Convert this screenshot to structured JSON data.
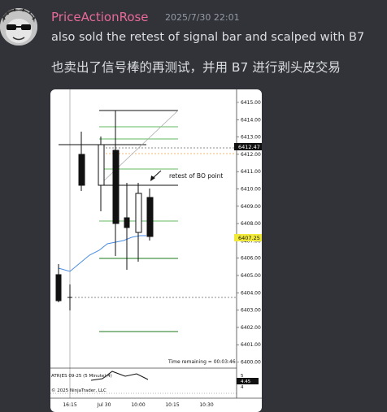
{
  "message": {
    "username": "PriceActionRose",
    "timestamp": "2025/7/30 22:01",
    "text": "also sold the retest of signal bar and scalped with B7",
    "translation": "也卖出了信号棒的再测试，并用 B7 进行剥头皮交易"
  },
  "chart_data": {
    "type": "candlestick",
    "y_ticks": [
      "6415.00",
      "6414.00",
      "6413.00",
      "6412.00",
      "6411.00",
      "6410.00",
      "6409.00",
      "6408.00",
      "6407.00",
      "6406.00",
      "6405.00",
      "6404.00",
      "6403.00",
      "6402.00",
      "6401.00",
      "6400.00"
    ],
    "x_ticks": [
      "16:15",
      "Jul 30",
      "10:00",
      "10:15",
      "10:30"
    ],
    "price_label_1": "6412.47",
    "price_label_2": "6407.25",
    "annotation": "retest of BO point",
    "time_remaining": "Time remaining = 00:03:46",
    "indicator_label": "ATR(ES 09-25 (5 Minute),4)",
    "copyright": "© 2025 NinjaTrader, LLC",
    "indicator_ticks": [
      "5",
      "4.45",
      "4"
    ]
  },
  "colors": {
    "username": "#e8699a",
    "text": "#dbdee1",
    "timestamp": "#949ba4",
    "bg": "#313338"
  }
}
